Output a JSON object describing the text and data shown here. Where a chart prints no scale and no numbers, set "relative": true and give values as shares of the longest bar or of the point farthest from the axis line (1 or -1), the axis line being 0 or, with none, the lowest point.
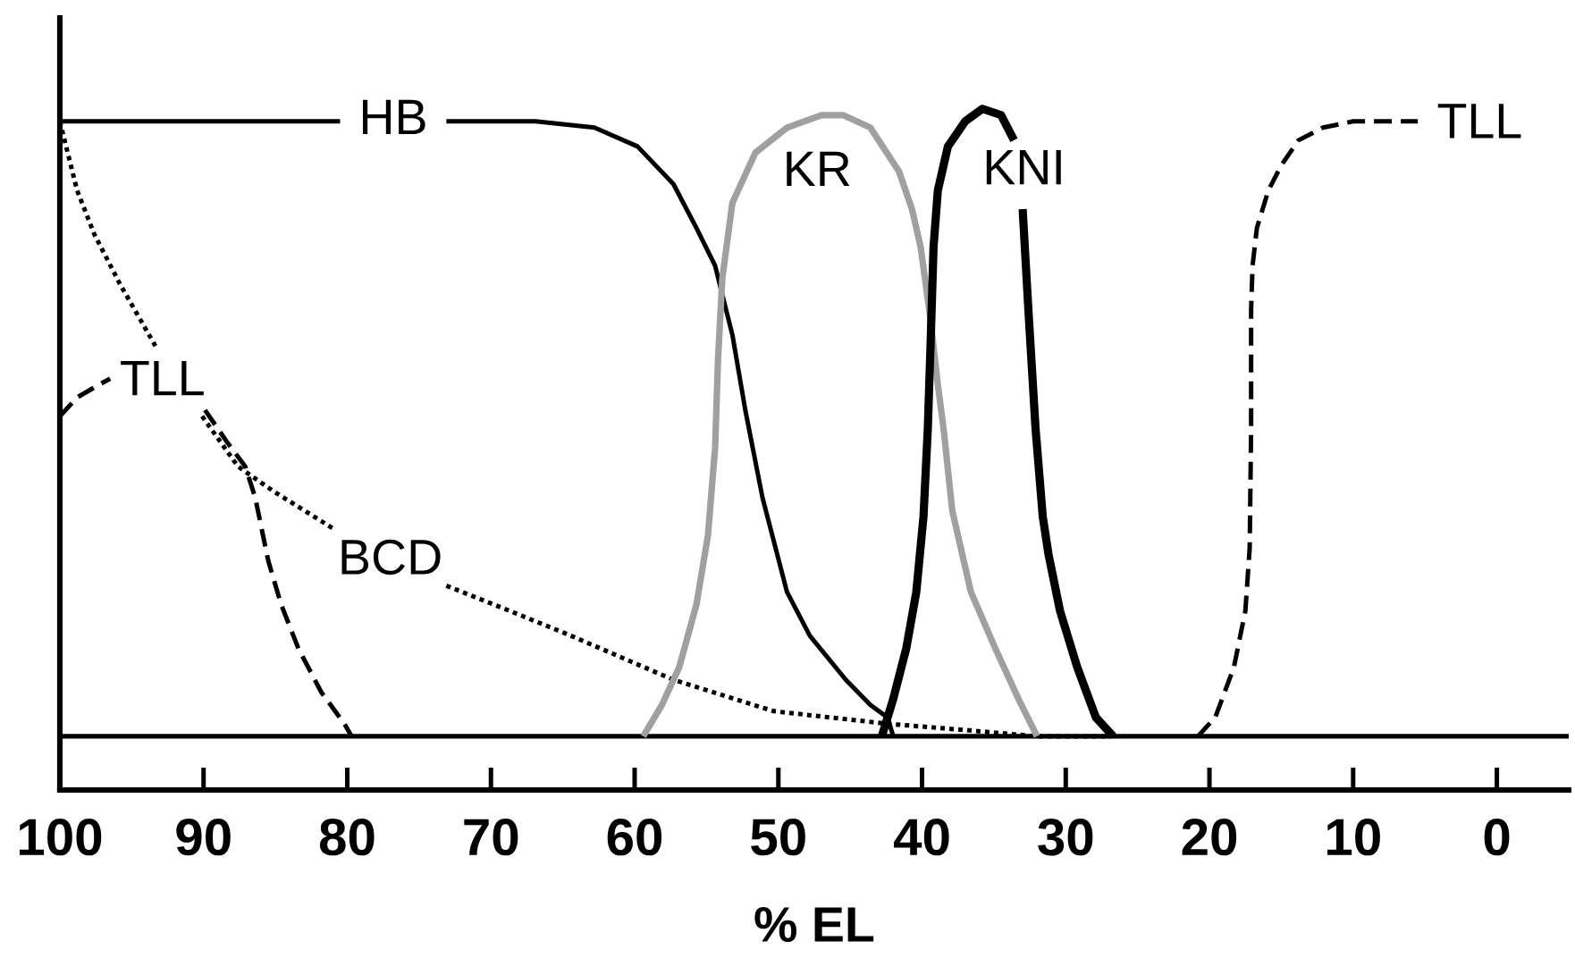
{
  "chart_data": {
    "type": "line",
    "relative": true,
    "xlabel": "% EL",
    "xlim": [
      100,
      -5
    ],
    "xticks": [
      100,
      90,
      80,
      70,
      60,
      50,
      40,
      30,
      20,
      10,
      0
    ],
    "tick_labels": "x",
    "ref_lines": [
      {
        "axis": "y",
        "value": 0,
        "color": "#000000",
        "line_style": "solid"
      }
    ],
    "series": [
      {
        "name": "HB",
        "color": "#000000",
        "line_style": "solid",
        "x": [
          100,
          90,
          80.5,
          77,
          73.1,
          70,
          66.9,
          62.8,
          59.8,
          57.3,
          55.7,
          54.4,
          53.2,
          52.3,
          51.1,
          49.4,
          47.8,
          45.3,
          43.6,
          42.4,
          42.0
        ],
        "values": [
          0.98,
          0.98,
          0.98,
          null,
          0.98,
          0.98,
          0.98,
          0.97,
          0.94,
          0.88,
          0.81,
          0.75,
          0.64,
          0.52,
          0.38,
          0.23,
          0.16,
          0.09,
          0.05,
          0.03,
          0
        ]
      },
      {
        "name": "BCD",
        "color": "#000000",
        "line_style": "dotted",
        "x": [
          100,
          98.8,
          97.6,
          95.8,
          93.3,
          91.5,
          90.1,
          87.6,
          85.1,
          80.9,
          77,
          73.1,
          68.7,
          64.4,
          57.3,
          50.3,
          42.4,
          37.0,
          32.0,
          27.0
        ],
        "values": [
          0.98,
          0.87,
          0.8,
          0.72,
          0.62,
          null,
          0.51,
          0.43,
          0.39,
          0.33,
          null,
          0.24,
          0.2,
          0.16,
          0.09,
          0.04,
          0.02,
          0.01,
          0,
          0
        ]
      },
      {
        "name": "TLL",
        "color": "#000000",
        "line_style": "dashed",
        "x": [
          100,
          98.8,
          97.3,
          96.5,
          93,
          89.9,
          88.4,
          87.1,
          86.4,
          85.5,
          84.6,
          83.4,
          81.8,
          80.2,
          79.7,
          50,
          20.8,
          19.6,
          18.3,
          17.5,
          17.2,
          17.1,
          17.1,
          17.0,
          16.7,
          15.9,
          15.0,
          13.8,
          12.1,
          10.0,
          5.5
        ],
        "values": [
          0.51,
          0.54,
          0.56,
          0.57,
          null,
          0.52,
          0.47,
          0.43,
          0.38,
          0.28,
          0.21,
          0.14,
          0.07,
          0.02,
          0,
          null,
          0,
          0.03,
          0.11,
          0.2,
          0.3,
          0.49,
          0.68,
          0.75,
          0.81,
          0.87,
          0.91,
          0.95,
          0.97,
          0.98,
          0.98
        ]
      },
      {
        "name": "KR",
        "color": "#a0a0a0",
        "line_style": "solid",
        "x": [
          59.4,
          58.1,
          56.9,
          55.7,
          54.9,
          54.4,
          54.2,
          53.9,
          53.2,
          51.6,
          49.4,
          47.0,
          45.5,
          43.6,
          41.6,
          40.7,
          40.1,
          39.5,
          38.9,
          38.5,
          37.9,
          36.6,
          34.9,
          33.3,
          32.0
        ],
        "values": [
          0,
          0.05,
          0.11,
          0.21,
          0.32,
          0.46,
          0.6,
          0.73,
          0.85,
          0.93,
          0.97,
          0.99,
          0.99,
          0.97,
          0.9,
          0.84,
          0.78,
          0.68,
          0.56,
          0.49,
          0.36,
          0.23,
          0.14,
          0.06,
          0
        ]
      },
      {
        "name": "KNI",
        "color": "#000000",
        "line_style": "solid",
        "x": [
          42.8,
          42.0,
          41.1,
          40.4,
          39.9,
          39.6,
          39.4,
          39.2,
          38.9,
          38.2,
          37.0,
          35.8,
          34.5,
          33.6,
          33.3,
          33.0,
          32.6,
          32.1,
          31.6,
          31.2,
          30.4,
          29.2,
          27.9,
          26.7
        ],
        "values": [
          0,
          0.06,
          0.14,
          0.23,
          0.35,
          0.49,
          0.63,
          0.78,
          0.87,
          0.94,
          0.98,
          1,
          0.99,
          0.95,
          null,
          0.84,
          0.68,
          0.49,
          0.35,
          0.29,
          0.2,
          0.11,
          0.03,
          0
        ]
      }
    ]
  }
}
